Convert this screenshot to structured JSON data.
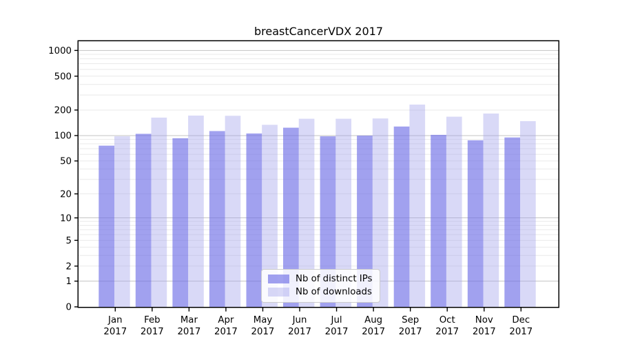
{
  "chart_data": {
    "type": "bar",
    "title": "breastCancerVDX 2017",
    "x_axis": {
      "months": [
        "Jan",
        "Feb",
        "Mar",
        "Apr",
        "May",
        "Jun",
        "Jul",
        "Aug",
        "Sep",
        "Oct",
        "Nov",
        "Dec"
      ],
      "year": "2017"
    },
    "y_axis": {
      "scale": "log1p",
      "ticks": [
        0,
        1,
        2,
        5,
        10,
        20,
        50,
        100,
        200,
        500,
        1000
      ],
      "ylim": [
        0,
        1230
      ]
    },
    "series": [
      {
        "name": "Nb of distinct IPs",
        "color": "#6e6ee6",
        "alpha": 0.65,
        "values": [
          76,
          105,
          93,
          113,
          106,
          124,
          98,
          100,
          128,
          102,
          88,
          95
        ]
      },
      {
        "name": "Nb of downloads",
        "color": "#a0a0eb",
        "alpha": 0.4,
        "values": [
          98,
          163,
          172,
          171,
          134,
          158,
          158,
          159,
          232,
          167,
          182,
          148
        ]
      }
    ],
    "legend_position": "lower center",
    "grid": {
      "major_color": "#c3c3c3",
      "minor_color": "#e9e9e9",
      "spine_color": "#000000"
    }
  }
}
